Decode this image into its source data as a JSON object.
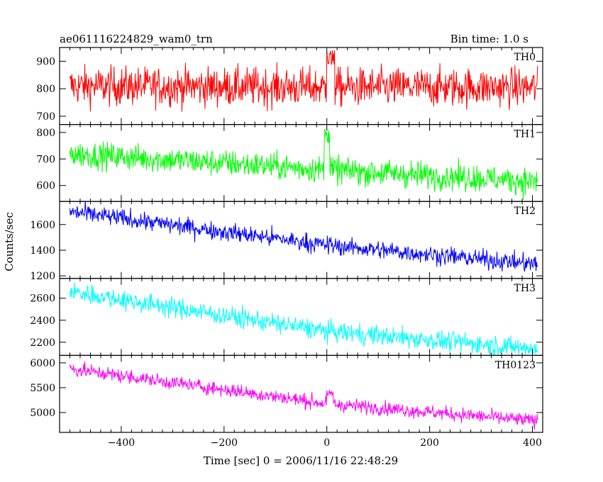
{
  "header": {
    "title": "ae061116224829_wam0_trn",
    "bin_time": "Bin time: 1.0 s"
  },
  "chart_data": {
    "type": "line",
    "ylabel": "Counts/sec",
    "xlabel": "Time [sec] 0 = 2006/11/16 22:48:29",
    "xlim": [
      -520,
      420
    ],
    "x_ticks": [
      -400,
      -200,
      0,
      200,
      400
    ],
    "x_tick_labels": [
      "−400",
      "−200",
      "0",
      "200",
      "400"
    ],
    "data_x_range": [
      -500,
      410
    ],
    "bin_time_s": 1.0,
    "grid": false,
    "panels": [
      {
        "name": "TH0",
        "color": "#ff0000",
        "ylim": [
          670,
          950
        ],
        "y_ticks": [
          700,
          800,
          900
        ],
        "y_tick_labels": [
          "700",
          "800",
          "900"
        ],
        "trend": [
          [
            -500,
            810
          ],
          [
            0,
            805
          ],
          [
            410,
            805
          ]
        ],
        "noise_sd": 35,
        "features": [
          {
            "x_start": 0,
            "x_end": 15,
            "peak": 940
          }
        ]
      },
      {
        "name": "TH1",
        "color": "#00ff00",
        "ylim": [
          540,
          830
        ],
        "y_ticks": [
          600,
          700,
          800
        ],
        "y_tick_labels": [
          "600",
          "700",
          "800"
        ],
        "trend": [
          [
            -500,
            720
          ],
          [
            0,
            660
          ],
          [
            410,
            615
          ]
        ],
        "noise_sd": 25,
        "features": [
          {
            "x_start": -5,
            "x_end": 5,
            "peak": 820
          }
        ]
      },
      {
        "name": "TH2",
        "color": "#0000ff",
        "ylim": [
          1180,
          1780
        ],
        "y_ticks": [
          1200,
          1400,
          1600
        ],
        "y_tick_labels": [
          "1200",
          "1400",
          "1600"
        ],
        "trend": [
          [
            -500,
            1700
          ],
          [
            0,
            1440
          ],
          [
            410,
            1290
          ]
        ],
        "noise_sd": 35,
        "features": []
      },
      {
        "name": "TH3",
        "color": "#00ffff",
        "ylim": [
          2080,
          2780
        ],
        "y_ticks": [
          2200,
          2400,
          2600
        ],
        "y_tick_labels": [
          "2200",
          "2400",
          "2600"
        ],
        "trend": [
          [
            -500,
            2660
          ],
          [
            0,
            2300
          ],
          [
            410,
            2140
          ]
        ],
        "noise_sd": 45,
        "features": []
      },
      {
        "name": "TH0123",
        "color": "#ff00ff",
        "ylim": [
          4600,
          6150
        ],
        "y_ticks": [
          5000,
          5500,
          6000
        ],
        "y_tick_labels": [
          "5000",
          "5500",
          "6000"
        ],
        "trend": [
          [
            -500,
            5880
          ],
          [
            0,
            5180
          ],
          [
            410,
            4830
          ]
        ],
        "noise_sd": 70,
        "features": [
          {
            "x_start": 0,
            "x_end": 12,
            "peak": 5450
          }
        ]
      }
    ]
  }
}
